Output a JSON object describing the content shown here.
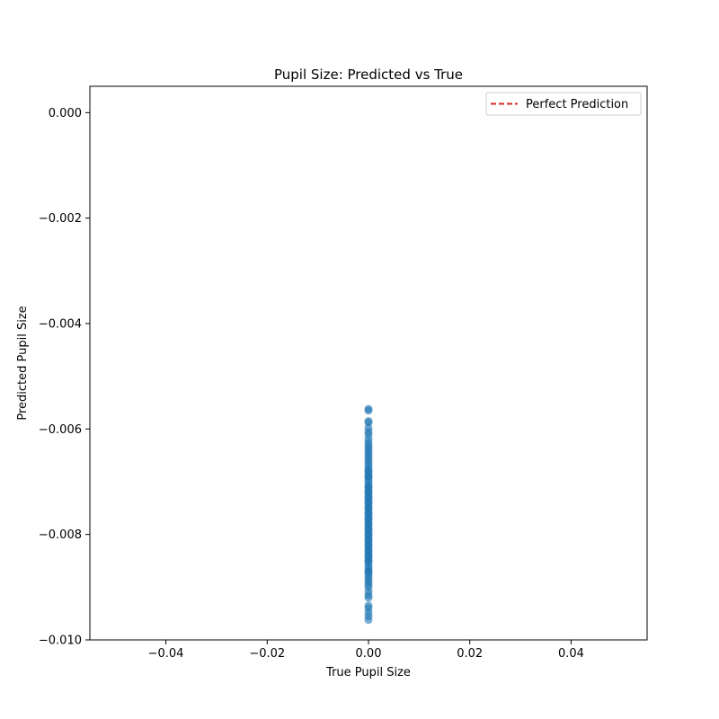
{
  "chart_data": {
    "type": "scatter",
    "title": "Pupil Size: Predicted vs True",
    "xlabel": "True Pupil Size",
    "ylabel": "Predicted Pupil Size",
    "xlim": [
      -0.055,
      0.055
    ],
    "ylim": [
      -0.01,
      0.0005
    ],
    "x_ticks": [
      -0.04,
      -0.02,
      0.0,
      0.02,
      0.04
    ],
    "x_tick_labels": [
      "−0.04",
      "−0.02",
      "0.00",
      "0.02",
      "0.04"
    ],
    "y_ticks": [
      0.0,
      -0.002,
      -0.004,
      -0.006,
      -0.008,
      -0.01
    ],
    "y_tick_labels": [
      "0.000",
      "−0.002",
      "−0.004",
      "−0.006",
      "−0.008",
      "−0.010"
    ],
    "grid": false,
    "legend": {
      "placement": "top-right",
      "entries": [
        {
          "label": "Perfect Prediction",
          "style": "dashed-line",
          "color": "#d62728"
        }
      ]
    },
    "series": [
      {
        "marker_color": "#1f77b4",
        "x": [
          0,
          0,
          0,
          0,
          0,
          0,
          0,
          0,
          0,
          0,
          0,
          0,
          0,
          0,
          0,
          0,
          0,
          0,
          0,
          0,
          0,
          0,
          0,
          0,
          0,
          0,
          0,
          0,
          0,
          0,
          0,
          0,
          0,
          0,
          0,
          0,
          0,
          0,
          0,
          0,
          0,
          0,
          0,
          0,
          0,
          0,
          0,
          0,
          0,
          0,
          0,
          0,
          0,
          0,
          0,
          0,
          0,
          0,
          0,
          0,
          0,
          0,
          0,
          0,
          0,
          0,
          0,
          0,
          0,
          0,
          0,
          0,
          0,
          0,
          0,
          0,
          0,
          0,
          0,
          0,
          0,
          0,
          0,
          0,
          0,
          0,
          0,
          0,
          0,
          0
        ],
        "y": [
          -0.00562,
          -0.00565,
          -0.00585,
          -0.00588,
          -0.00598,
          -0.00605,
          -0.0061,
          -0.00618,
          -0.00625,
          -0.0063,
          -0.00635,
          -0.0064,
          -0.00645,
          -0.0065,
          -0.00655,
          -0.0066,
          -0.00665,
          -0.0067,
          -0.00675,
          -0.0068,
          -0.00685,
          -0.0069,
          -0.00695,
          -0.007,
          -0.00705,
          -0.0071,
          -0.00715,
          -0.0072,
          -0.00725,
          -0.0073,
          -0.00735,
          -0.0074,
          -0.00745,
          -0.0075,
          -0.00755,
          -0.0076,
          -0.00765,
          -0.0077,
          -0.00775,
          -0.0078,
          -0.00785,
          -0.0079,
          -0.00795,
          -0.008,
          -0.00805,
          -0.0081,
          -0.00815,
          -0.0082,
          -0.00825,
          -0.0083,
          -0.00835,
          -0.0084,
          -0.00845,
          -0.0085,
          -0.00855,
          -0.0086,
          -0.00865,
          -0.0087,
          -0.00875,
          -0.0088,
          -0.00885,
          -0.0089,
          -0.00895,
          -0.009,
          -0.00908,
          -0.00915,
          -0.0092,
          -0.00935,
          -0.0094,
          -0.00948,
          -0.00955,
          -0.00962,
          -0.0072,
          -0.0074,
          -0.0076,
          -0.0078,
          -0.008,
          -0.0082,
          -0.0084,
          -0.0071,
          -0.0073,
          -0.0075,
          -0.0077,
          -0.0079,
          -0.0081,
          -0.0083,
          -0.0085,
          -0.0069,
          -0.0087,
          -0.0068
        ]
      }
    ]
  }
}
